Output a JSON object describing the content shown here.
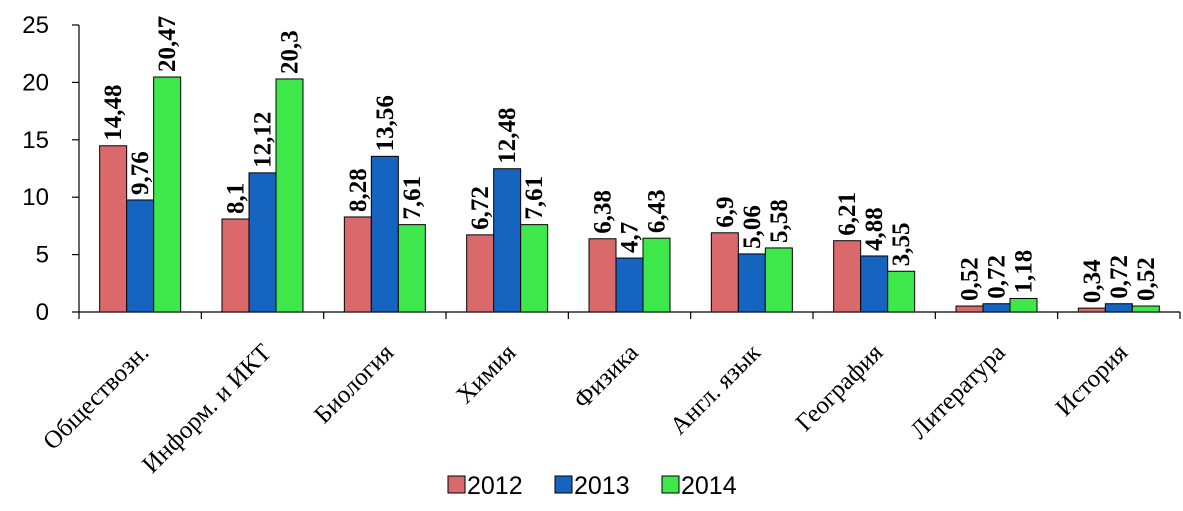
{
  "chart_data": {
    "type": "bar",
    "title": "",
    "xlabel": "",
    "ylabel": "",
    "ylim": [
      0,
      25
    ],
    "yticks": [
      0,
      5,
      10,
      15,
      20,
      25
    ],
    "ytick_labels": [
      "0",
      "5",
      "10",
      "15",
      "20",
      "25"
    ],
    "grid": false,
    "legend_position": "bottom",
    "categories": [
      "Обществозн.",
      "Информ. и ИКТ",
      "Биология",
      "Химия",
      "Физика",
      "Англ. язык",
      "География",
      "Литература",
      "История"
    ],
    "series": [
      {
        "name": "2012",
        "color": "#d9696a",
        "values": [
          14.48,
          8.1,
          8.28,
          6.72,
          6.38,
          6.9,
          6.21,
          0.52,
          0.34
        ],
        "labels": [
          "14,48",
          "8,1",
          "8,28",
          "6,72",
          "6,38",
          "6,9",
          "6,21",
          "0,52",
          "0,34"
        ]
      },
      {
        "name": "2013",
        "color": "#1565c0",
        "values": [
          9.76,
          12.12,
          13.56,
          12.48,
          4.7,
          5.06,
          4.88,
          0.72,
          0.72
        ],
        "labels": [
          "9,76",
          "12,12",
          "13,56",
          "12,48",
          "4,7",
          "5,06",
          "4,88",
          "0,72",
          "0,72"
        ]
      },
      {
        "name": "2014",
        "color": "#3ee84a",
        "values": [
          20.47,
          20.3,
          7.61,
          7.61,
          6.43,
          5.58,
          3.55,
          1.18,
          0.52
        ],
        "labels": [
          "20,47",
          "20,3",
          "7,61",
          "7,61",
          "6,43",
          "5,58",
          "3,55",
          "1,18",
          "0,52"
        ]
      }
    ]
  }
}
